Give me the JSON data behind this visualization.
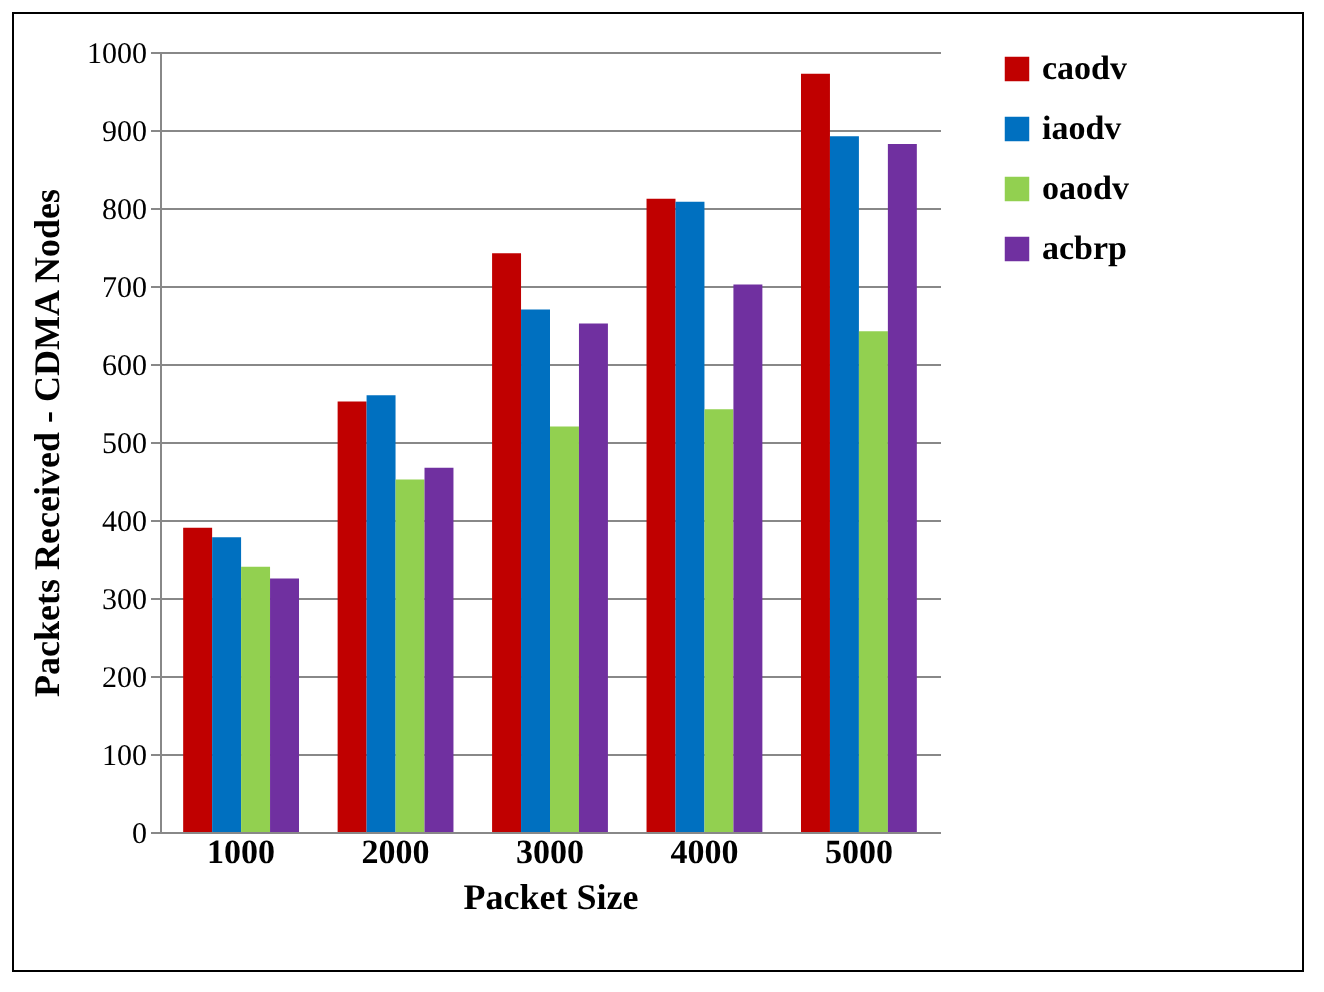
{
  "chart_data": {
    "type": "bar",
    "xlabel": "Packet Size",
    "ylabel": "Packets Received - CDMA Nodes",
    "categories": [
      "1000",
      "2000",
      "3000",
      "4000",
      "5000"
    ],
    "series": [
      {
        "name": "caodv",
        "color": "#c00000",
        "values": [
          390,
          552,
          742,
          812,
          972
        ]
      },
      {
        "name": "iaodv",
        "color": "#0070c0",
        "values": [
          378,
          560,
          670,
          808,
          892
        ]
      },
      {
        "name": "oaodv",
        "color": "#92d050",
        "values": [
          340,
          452,
          520,
          542,
          642
        ]
      },
      {
        "name": "acbrp",
        "color": "#7030a0",
        "values": [
          325,
          467,
          652,
          702,
          882
        ]
      }
    ],
    "ylim": [
      0,
      1000
    ],
    "yticks": [
      0,
      100,
      200,
      300,
      400,
      500,
      600,
      700,
      800,
      900,
      1000
    ],
    "grid": "y",
    "legend": "right"
  }
}
